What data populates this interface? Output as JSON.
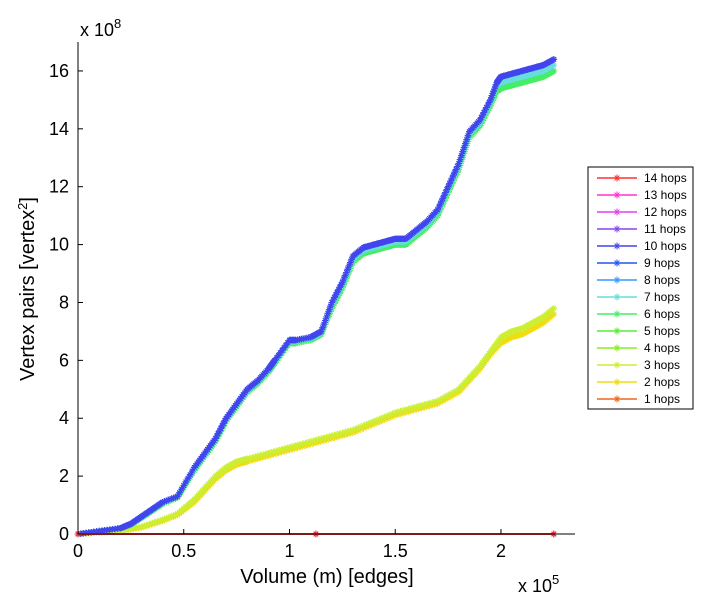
{
  "chart_data": {
    "type": "line",
    "xlabel": "Volume (m) [edges]",
    "ylabel_prefix": "Vertex pairs [vertex",
    "ylabel_sup": "2",
    "ylabel_suffix": "]",
    "x_multiplier_label": "x 10",
    "x_multiplier_exp": "5",
    "y_multiplier_label": "x 10",
    "y_multiplier_exp": "8",
    "xlim": [
      0,
      2.35
    ],
    "ylim": [
      0,
      17
    ],
    "x_ticks": [
      0,
      0.5,
      1,
      1.5,
      2
    ],
    "x_tick_labels": [
      "0",
      "0.5",
      "1",
      "1.5",
      "2"
    ],
    "y_ticks": [
      0,
      2,
      4,
      6,
      8,
      10,
      12,
      14,
      16
    ],
    "y_tick_labels": [
      "0",
      "2",
      "4",
      "6",
      "8",
      "10",
      "12",
      "14",
      "16"
    ],
    "legend_position": "outside-right",
    "grid": false,
    "series": [
      {
        "name": "14 hops",
        "color": "#ff3030",
        "x": [
          0,
          2.25
        ],
        "y": [
          0,
          0
        ]
      },
      {
        "name": "13 hops",
        "color": "#ff33cc",
        "x": [
          0,
          2.25
        ],
        "y": [
          0,
          0
        ]
      },
      {
        "name": "12 hops",
        "color": "#dd44ee",
        "x": [
          0,
          2.25
        ],
        "y": [
          0,
          0
        ]
      },
      {
        "name": "11 hops",
        "color": "#8844ee",
        "x": [
          0,
          2.25
        ],
        "y": [
          0,
          0
        ]
      },
      {
        "name": "10 hops",
        "color": "#4444ee",
        "x": [
          0,
          0.1,
          0.2,
          0.25,
          0.3,
          0.35,
          0.4,
          0.47,
          0.55,
          0.6,
          0.65,
          0.7,
          0.75,
          0.8,
          0.85,
          0.9,
          0.93,
          1.0,
          1.03,
          1.1,
          1.15,
          1.2,
          1.25,
          1.3,
          1.35,
          1.4,
          1.45,
          1.5,
          1.55,
          1.6,
          1.65,
          1.7,
          1.75,
          1.8,
          1.85,
          1.9,
          1.95,
          1.98,
          2.0,
          2.05,
          2.1,
          2.15,
          2.2,
          2.25
        ],
        "y": [
          0,
          0.1,
          0.2,
          0.35,
          0.6,
          0.85,
          1.1,
          1.3,
          2.3,
          2.8,
          3.3,
          4.0,
          4.5,
          5.0,
          5.3,
          5.7,
          6.0,
          6.7,
          6.7,
          6.8,
          7.0,
          8.0,
          8.7,
          9.6,
          9.9,
          10.0,
          10.1,
          10.2,
          10.2,
          10.5,
          10.8,
          11.2,
          12.0,
          12.8,
          13.9,
          14.3,
          15.0,
          15.6,
          15.8,
          15.9,
          16.0,
          16.1,
          16.2,
          16.4
        ]
      },
      {
        "name": "9 hops",
        "color": "#2255ee",
        "x": [
          0,
          0.1,
          0.2,
          0.25,
          0.3,
          0.35,
          0.4,
          0.47,
          0.55,
          0.6,
          0.65,
          0.7,
          0.75,
          0.8,
          0.85,
          0.9,
          0.93,
          1.0,
          1.03,
          1.1,
          1.15,
          1.2,
          1.25,
          1.3,
          1.35,
          1.4,
          1.45,
          1.5,
          1.55,
          1.6,
          1.65,
          1.7,
          1.75,
          1.8,
          1.85,
          1.9,
          1.95,
          1.98,
          2.0,
          2.05,
          2.1,
          2.15,
          2.2,
          2.25
        ],
        "y": [
          0,
          0.1,
          0.2,
          0.35,
          0.6,
          0.85,
          1.1,
          1.3,
          2.3,
          2.8,
          3.3,
          4.0,
          4.5,
          5.0,
          5.3,
          5.7,
          6.0,
          6.7,
          6.7,
          6.8,
          7.0,
          8.0,
          8.7,
          9.6,
          9.9,
          10.0,
          10.1,
          10.2,
          10.2,
          10.5,
          10.8,
          11.2,
          12.0,
          12.8,
          13.9,
          14.3,
          15.0,
          15.6,
          15.8,
          15.9,
          16.0,
          16.1,
          16.2,
          16.4
        ]
      },
      {
        "name": "8 hops",
        "color": "#3399ff",
        "x": [
          0,
          0.1,
          0.2,
          0.25,
          0.3,
          0.35,
          0.4,
          0.47,
          0.55,
          0.6,
          0.65,
          0.7,
          0.75,
          0.8,
          0.85,
          0.9,
          0.93,
          1.0,
          1.03,
          1.1,
          1.15,
          1.2,
          1.25,
          1.3,
          1.35,
          1.4,
          1.45,
          1.5,
          1.55,
          1.6,
          1.65,
          1.7,
          1.75,
          1.8,
          1.85,
          1.9,
          1.95,
          1.98,
          2.0,
          2.05,
          2.1,
          2.15,
          2.2,
          2.25
        ],
        "y": [
          0,
          0.1,
          0.2,
          0.35,
          0.6,
          0.85,
          1.1,
          1.3,
          2.3,
          2.8,
          3.3,
          4.0,
          4.5,
          5.0,
          5.3,
          5.7,
          6.0,
          6.7,
          6.7,
          6.8,
          7.0,
          8.0,
          8.7,
          9.6,
          9.9,
          10.0,
          10.1,
          10.2,
          10.2,
          10.5,
          10.8,
          11.2,
          12.0,
          12.8,
          13.9,
          14.3,
          15.0,
          15.6,
          15.8,
          15.9,
          16.0,
          16.1,
          16.2,
          16.4
        ]
      },
      {
        "name": "7 hops",
        "color": "#66dddd",
        "x": [
          0,
          0.1,
          0.2,
          0.25,
          0.3,
          0.35,
          0.4,
          0.47,
          0.55,
          0.6,
          0.65,
          0.7,
          0.75,
          0.8,
          0.85,
          0.9,
          0.93,
          1.0,
          1.03,
          1.1,
          1.15,
          1.2,
          1.25,
          1.3,
          1.35,
          1.4,
          1.45,
          1.5,
          1.55,
          1.6,
          1.65,
          1.7,
          1.75,
          1.8,
          1.85,
          1.9,
          1.95,
          1.98,
          2.0,
          2.05,
          2.1,
          2.15,
          2.2,
          2.25
        ],
        "y": [
          0,
          0.1,
          0.2,
          0.33,
          0.58,
          0.83,
          1.08,
          1.28,
          2.25,
          2.75,
          3.25,
          3.95,
          4.45,
          4.95,
          5.25,
          5.65,
          5.95,
          6.65,
          6.65,
          6.75,
          6.95,
          7.9,
          8.6,
          9.5,
          9.8,
          9.9,
          10.0,
          10.1,
          10.1,
          10.4,
          10.7,
          11.1,
          11.9,
          12.7,
          13.8,
          14.2,
          14.9,
          15.5,
          15.6,
          15.7,
          15.8,
          15.9,
          16.0,
          16.2
        ]
      },
      {
        "name": "6 hops",
        "color": "#44ee66",
        "x": [
          0,
          0.1,
          0.2,
          0.25,
          0.3,
          0.35,
          0.4,
          0.47,
          0.55,
          0.6,
          0.65,
          0.7,
          0.75,
          0.8,
          0.85,
          0.9,
          0.93,
          1.0,
          1.03,
          1.1,
          1.15,
          1.2,
          1.25,
          1.3,
          1.35,
          1.4,
          1.45,
          1.5,
          1.55,
          1.6,
          1.65,
          1.7,
          1.75,
          1.8,
          1.85,
          1.9,
          1.95,
          1.98,
          2.0,
          2.05,
          2.1,
          2.15,
          2.2,
          2.25
        ],
        "y": [
          0,
          0.1,
          0.2,
          0.32,
          0.56,
          0.8,
          1.05,
          1.25,
          2.2,
          2.7,
          3.2,
          3.9,
          4.4,
          4.9,
          5.2,
          5.6,
          5.9,
          6.6,
          6.6,
          6.7,
          6.9,
          7.8,
          8.5,
          9.4,
          9.7,
          9.8,
          9.9,
          10.0,
          10.0,
          10.3,
          10.6,
          11.0,
          11.8,
          12.6,
          13.7,
          14.1,
          14.8,
          15.3,
          15.4,
          15.5,
          15.6,
          15.7,
          15.8,
          16.0
        ]
      },
      {
        "name": "5 hops",
        "color": "#55ee33",
        "x": [
          0,
          0.1,
          0.2,
          0.25,
          0.3,
          0.35,
          0.4,
          0.47,
          0.55,
          0.6,
          0.65,
          0.7,
          0.75,
          0.8,
          0.85,
          0.9,
          0.93,
          1.0,
          1.03,
          1.1,
          1.15,
          1.2,
          1.25,
          1.3,
          1.35,
          1.4,
          1.45,
          1.5,
          1.55,
          1.6,
          1.65,
          1.7,
          1.75,
          1.8,
          1.85,
          1.9,
          1.95,
          1.98,
          2.0,
          2.05,
          2.1,
          2.15,
          2.2,
          2.25
        ],
        "y": [
          0,
          0.1,
          0.2,
          0.32,
          0.56,
          0.8,
          1.05,
          1.25,
          2.2,
          2.7,
          3.2,
          3.9,
          4.4,
          4.9,
          5.2,
          5.6,
          5.9,
          6.6,
          6.6,
          6.7,
          6.9,
          7.8,
          8.5,
          9.4,
          9.7,
          9.8,
          9.9,
          10.0,
          10.0,
          10.3,
          10.6,
          11.0,
          11.8,
          12.6,
          13.7,
          14.1,
          14.8,
          15.3,
          15.4,
          15.5,
          15.6,
          15.7,
          15.8,
          16.0
        ]
      },
      {
        "name": "4 hops",
        "color": "#88ee22",
        "x": [
          0,
          0.1,
          0.2,
          0.25,
          0.3,
          0.35,
          0.4,
          0.47,
          0.55,
          0.6,
          0.65,
          0.7,
          0.75,
          0.8,
          0.85,
          0.9,
          0.93,
          1.0,
          1.03,
          1.1,
          1.15,
          1.2,
          1.25,
          1.3,
          1.35,
          1.4,
          1.45,
          1.5,
          1.55,
          1.6,
          1.65,
          1.7,
          1.75,
          1.8,
          1.85,
          1.9,
          1.95,
          1.98,
          2.0,
          2.05,
          2.1,
          2.15,
          2.2,
          2.25
        ],
        "y": [
          0,
          0.1,
          0.2,
          0.32,
          0.56,
          0.8,
          1.05,
          1.25,
          2.2,
          2.7,
          3.2,
          3.9,
          4.4,
          4.9,
          5.2,
          5.6,
          5.9,
          6.6,
          6.6,
          6.7,
          6.9,
          7.8,
          8.5,
          9.4,
          9.7,
          9.8,
          9.9,
          10.0,
          10.0,
          10.3,
          10.6,
          11.0,
          11.8,
          12.6,
          13.7,
          14.1,
          14.8,
          15.3,
          15.4,
          15.5,
          15.6,
          15.7,
          15.8,
          16.0
        ]
      },
      {
        "name": "3 hops",
        "color": "#ccee33",
        "x": [
          0,
          0.1,
          0.2,
          0.3,
          0.4,
          0.47,
          0.55,
          0.6,
          0.65,
          0.7,
          0.75,
          0.8,
          0.9,
          1.0,
          1.1,
          1.2,
          1.3,
          1.4,
          1.5,
          1.6,
          1.7,
          1.8,
          1.85,
          1.9,
          1.95,
          2.0,
          2.05,
          2.1,
          2.15,
          2.2,
          2.25
        ],
        "y": [
          0,
          0.05,
          0.1,
          0.25,
          0.5,
          0.7,
          1.2,
          1.6,
          2.0,
          2.3,
          2.5,
          2.6,
          2.8,
          3.0,
          3.2,
          3.4,
          3.6,
          3.9,
          4.2,
          4.4,
          4.6,
          5.0,
          5.4,
          5.8,
          6.3,
          6.8,
          7.0,
          7.1,
          7.3,
          7.5,
          7.8
        ]
      },
      {
        "name": "2 hops",
        "color": "#eedd11",
        "x": [
          0,
          0.1,
          0.2,
          0.3,
          0.4,
          0.47,
          0.55,
          0.6,
          0.65,
          0.7,
          0.75,
          0.8,
          0.9,
          1.0,
          1.1,
          1.2,
          1.3,
          1.4,
          1.5,
          1.6,
          1.7,
          1.8,
          1.85,
          1.9,
          1.95,
          2.0,
          2.05,
          2.1,
          2.15,
          2.2,
          2.25
        ],
        "y": [
          0,
          0.05,
          0.1,
          0.22,
          0.45,
          0.65,
          1.1,
          1.5,
          1.9,
          2.2,
          2.4,
          2.5,
          2.7,
          2.9,
          3.1,
          3.3,
          3.5,
          3.8,
          4.1,
          4.3,
          4.5,
          4.9,
          5.3,
          5.7,
          6.2,
          6.6,
          6.8,
          6.9,
          7.1,
          7.3,
          7.6
        ]
      },
      {
        "name": "1 hops",
        "color": "#ee6622",
        "x": [
          0,
          2.25
        ],
        "y": [
          0,
          0
        ]
      }
    ]
  }
}
